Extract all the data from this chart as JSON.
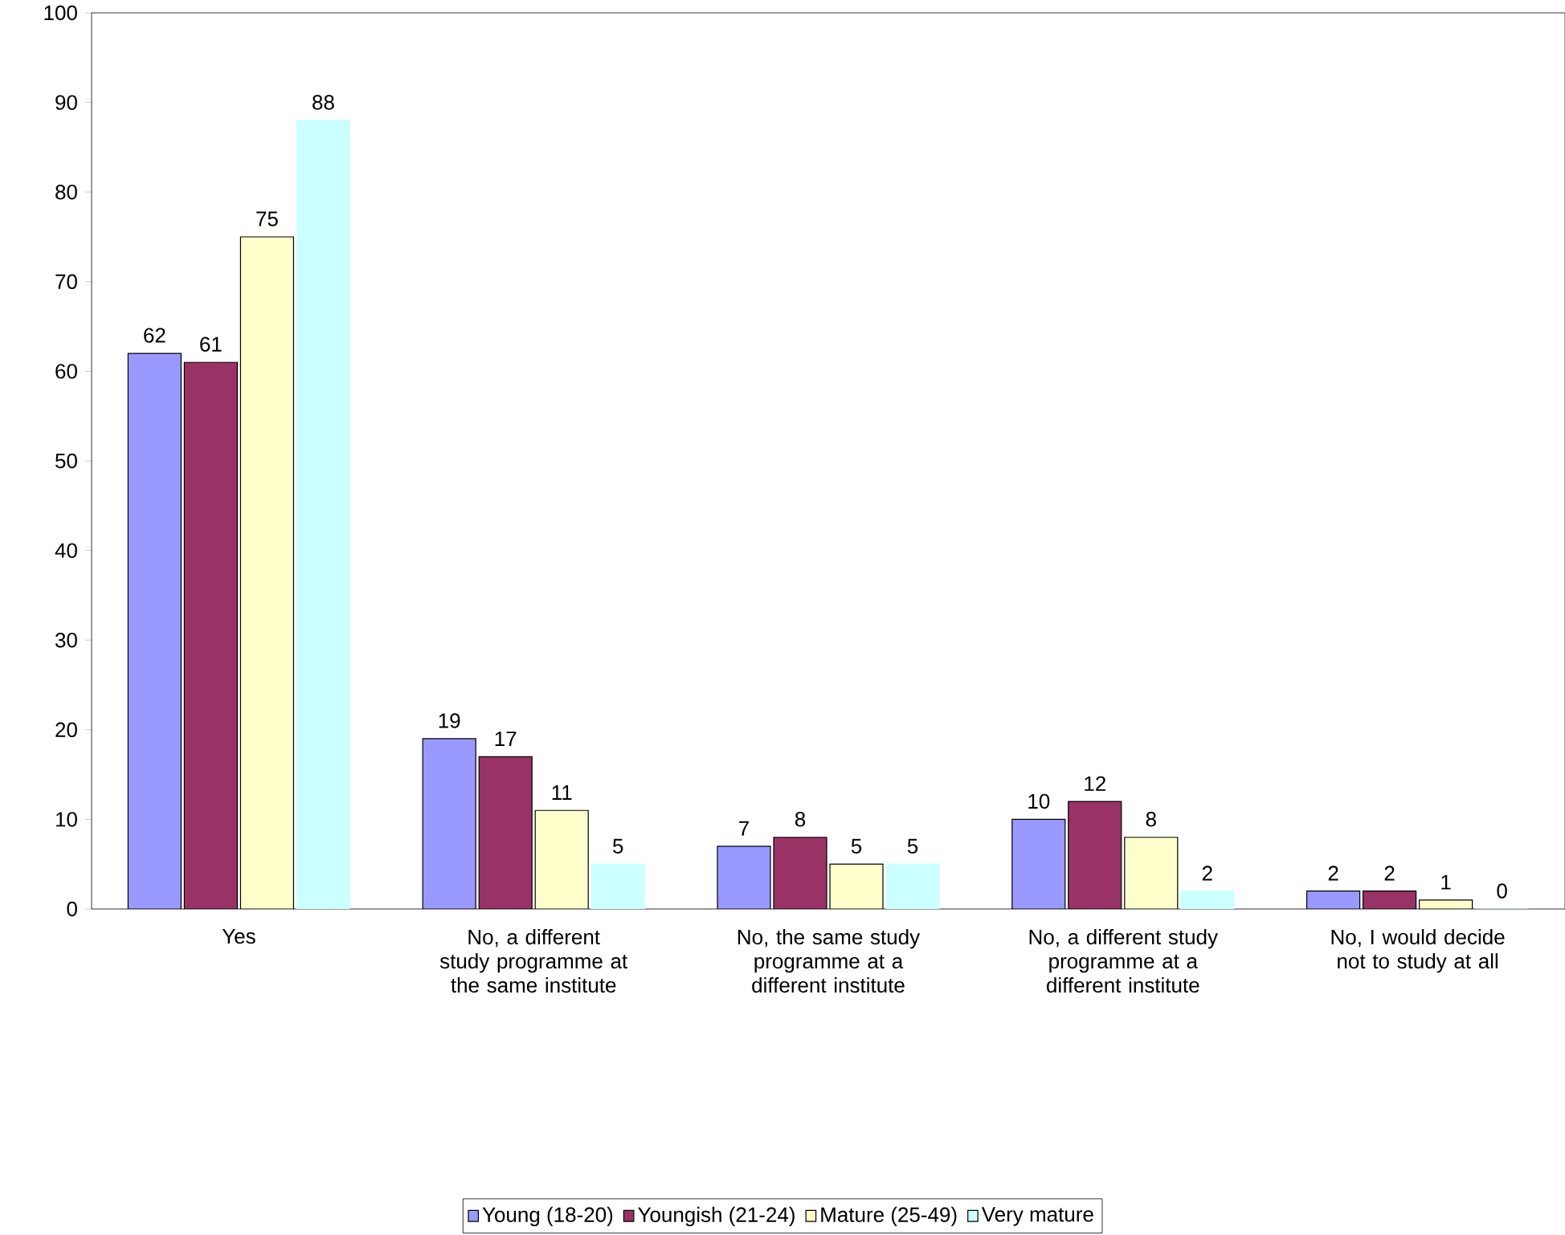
{
  "chart_data": {
    "type": "bar",
    "categories": [
      "Yes",
      "No, a different study programme at the same institute",
      "No, the same study programme at a different institute",
      "No, a different study programme at a different institute",
      "No, I would decide not to study at all"
    ],
    "series": [
      {
        "name": "Young (18-20)",
        "color": "#9999ff",
        "values": [
          62,
          19,
          7,
          10,
          2
        ]
      },
      {
        "name": "Youngish (21-24)",
        "color": "#993366",
        "values": [
          61,
          17,
          8,
          12,
          2
        ]
      },
      {
        "name": "Mature (25-49)",
        "color": "#ffffcc",
        "values": [
          75,
          11,
          5,
          8,
          1
        ]
      },
      {
        "name": "Very mature",
        "color": "#ccffff",
        "values": [
          88,
          5,
          5,
          2,
          0
        ]
      }
    ],
    "ylim": [
      0,
      100
    ],
    "yticks": [
      0,
      10,
      20,
      30,
      40,
      50,
      60,
      70,
      80,
      90,
      100
    ],
    "data_labels": true,
    "grid": false,
    "legend": "bottom"
  }
}
